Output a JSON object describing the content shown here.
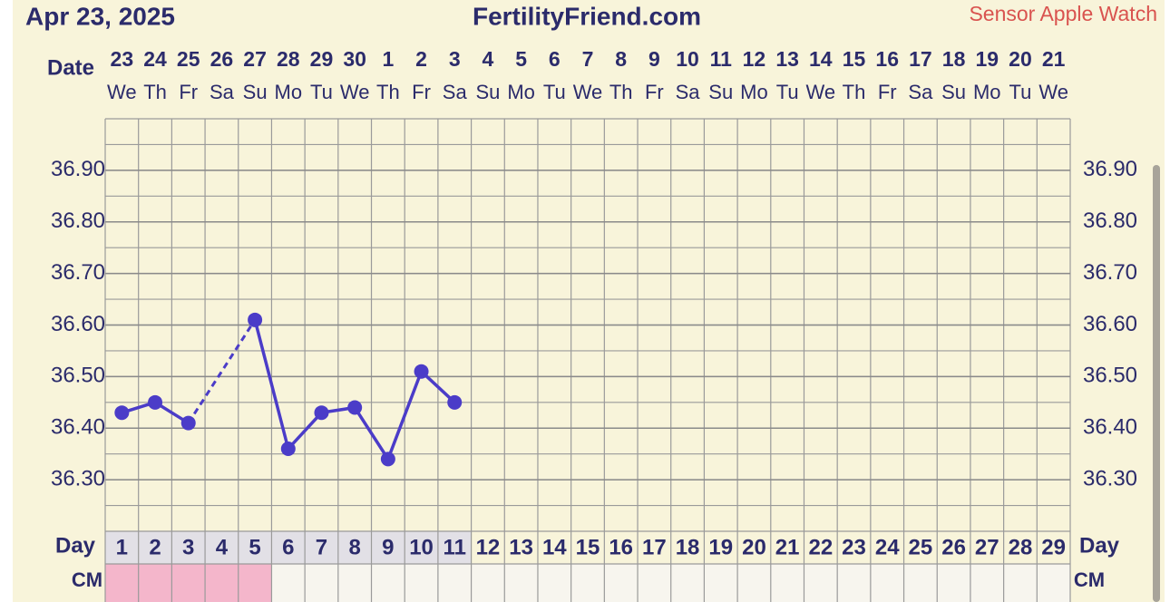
{
  "chart_data": {
    "type": "line",
    "title": "FertilityFriend.com",
    "date_text": "Apr 23, 2025",
    "sensor_text": "Sensor Apple Watch",
    "date_label": "Date",
    "day_label": "Day",
    "cm_label": "CM",
    "dates": [
      "23",
      "24",
      "25",
      "26",
      "27",
      "28",
      "29",
      "30",
      "1",
      "2",
      "3",
      "4",
      "5",
      "6",
      "7",
      "8",
      "9",
      "10",
      "11",
      "12",
      "13",
      "14",
      "15",
      "16",
      "17",
      "18",
      "19",
      "20",
      "21"
    ],
    "weekdays": [
      "We",
      "Th",
      "Fr",
      "Sa",
      "Su",
      "Mo",
      "Tu",
      "We",
      "Th",
      "Fr",
      "Sa",
      "Su",
      "Mo",
      "Tu",
      "We",
      "Th",
      "Fr",
      "Sa",
      "Su",
      "Mo",
      "Tu",
      "We",
      "Th",
      "Fr",
      "Sa",
      "Su",
      "Mo",
      "Tu",
      "We"
    ],
    "categories": [
      1,
      2,
      3,
      4,
      5,
      6,
      7,
      8,
      9,
      10,
      11,
      12,
      13,
      14,
      15,
      16,
      17,
      18,
      19,
      20,
      21,
      22,
      23,
      24,
      25,
      26,
      27,
      28,
      29
    ],
    "series": [
      {
        "color": "#4b3cc8",
        "values": [
          36.43,
          36.45,
          36.41,
          null,
          36.61,
          36.36,
          36.43,
          36.44,
          36.34,
          36.51,
          36.45,
          null,
          null,
          null,
          null,
          null,
          null,
          null,
          null,
          null,
          null,
          null,
          null,
          null,
          null,
          null,
          null,
          null,
          null
        ]
      }
    ],
    "cm_colors": [
      "#f4b6cb",
      "#f4b6cb",
      "#f4b6cb",
      "#f4b6cb",
      "#f4b6cb",
      "#f7f5ee",
      "#f7f5ee",
      "#f7f5ee",
      "#f7f5ee",
      "#f7f5ee",
      "#f7f5ee",
      "#f7f5ee",
      "#f7f5ee",
      "#f7f5ee",
      "#f7f5ee",
      "#f7f5ee",
      "#f7f5ee",
      "#f7f5ee",
      "#f7f5ee",
      "#f7f5ee",
      "#f7f5ee",
      "#f7f5ee",
      "#f7f5ee",
      "#f7f5ee",
      "#f7f5ee",
      "#f7f5ee",
      "#f7f5ee",
      "#f7f5ee",
      "#f7f5ee"
    ],
    "ylim": [
      36.2,
      37.0
    ],
    "yticks": [
      {
        "value": 36.3,
        "label": "36.30"
      },
      {
        "value": 36.4,
        "label": "36.40"
      },
      {
        "value": 36.5,
        "label": "36.50"
      },
      {
        "value": 36.6,
        "label": "36.60"
      },
      {
        "value": 36.7,
        "label": "36.70"
      },
      {
        "value": 36.8,
        "label": "36.80"
      },
      {
        "value": 36.9,
        "label": "36.90"
      }
    ],
    "grid": true
  }
}
